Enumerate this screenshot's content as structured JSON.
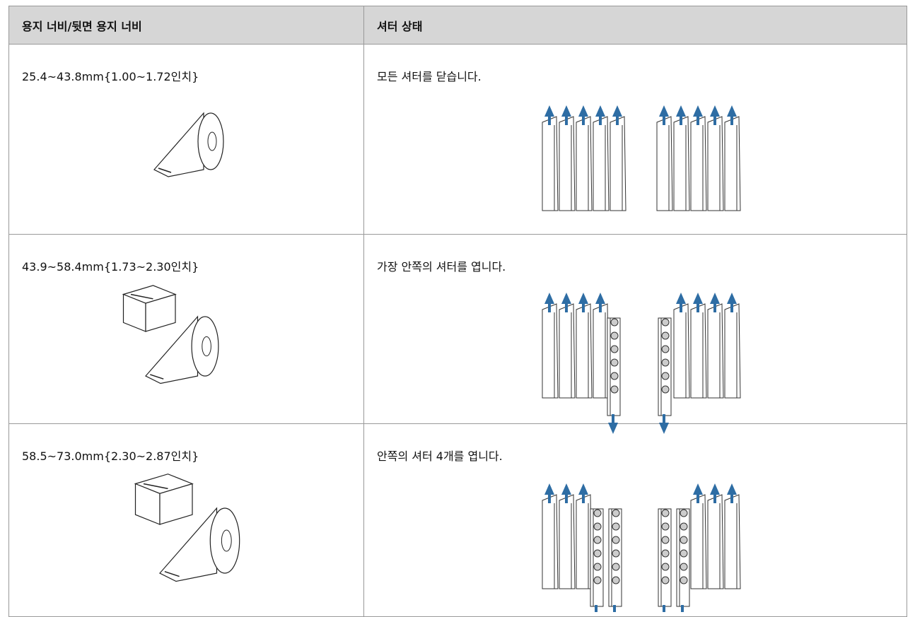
{
  "table": {
    "header": [
      "용지 너비/뒷면 용지 너비",
      "셔터 상태"
    ],
    "rows": [
      [
        "25.4~43.8mm{1.00~1.72인치}",
        "모든 셔터를 닫습니다."
      ],
      [
        "43.9~58.4mm{1.73~2.30인치}",
        "가장 안쪽의 셔터를 엽니다."
      ],
      [
        "58.5~73.0mm{2.30~2.87인치}",
        "안쪽의 셔터 4개를 엽니다."
      ]
    ]
  }
}
